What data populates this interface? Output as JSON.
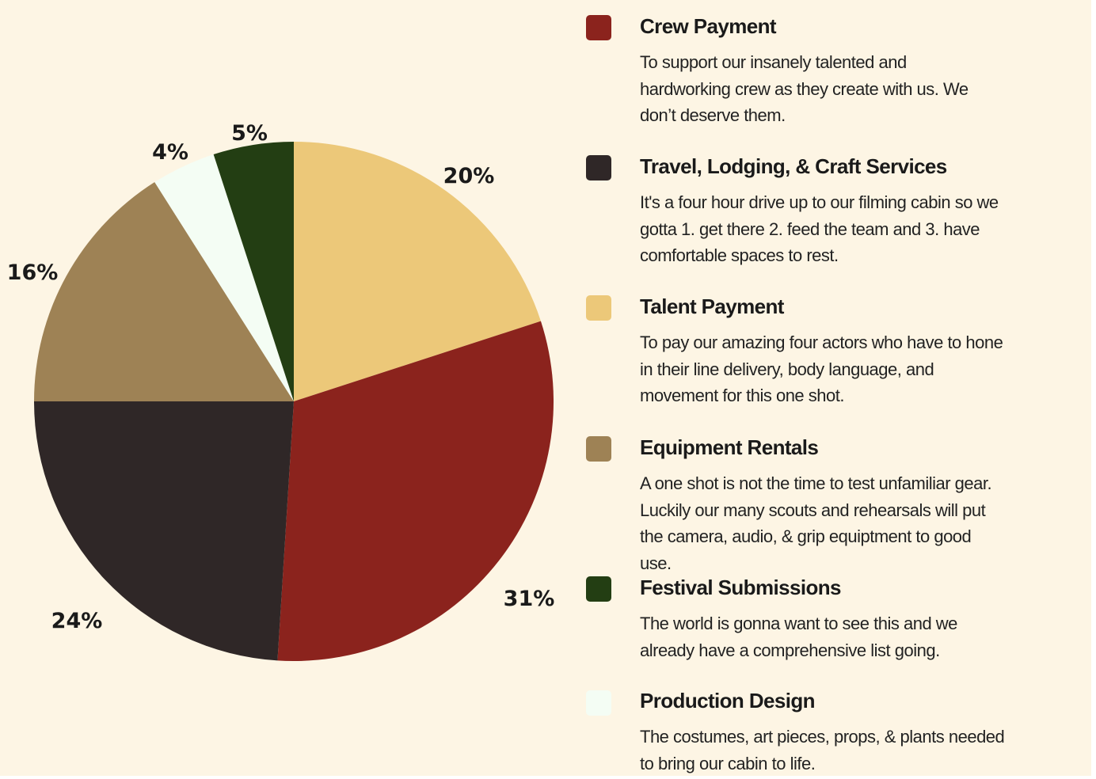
{
  "chart_data": {
    "type": "pie",
    "start_angle_deg": 0,
    "direction": "clockwise",
    "slices": [
      {
        "label": "Talent Payment",
        "value": 20,
        "value_label": "20%",
        "color": "#ecc879"
      },
      {
        "label": "Crew Payment",
        "value": 31,
        "value_label": "31%",
        "color": "#8b231d"
      },
      {
        "label": "Travel, Lodging, & Craft Services",
        "value": 24,
        "value_label": "24%",
        "color": "#2f2727"
      },
      {
        "label": "Equipment Rentals",
        "value": 16,
        "value_label": "16%",
        "color": "#9e8255"
      },
      {
        "label": "Production Design",
        "value": 4,
        "value_label": "4%",
        "color": "#f4fdf4"
      },
      {
        "label": "Festival Submissions",
        "value": 5,
        "value_label": "5%",
        "color": "#233e13"
      }
    ]
  },
  "legend": {
    "items": [
      {
        "title": "Crew Payment",
        "color": "#8b231d",
        "description": "To support our insanely talented and\nhardworking crew as they create with us. We\ndon’t deserve them."
      },
      {
        "title": "Travel, Lodging, & Craft Services",
        "color": "#2f2727",
        "description": "It's a four hour drive up to our filming cabin so we\ngotta 1. get there 2. feed the team and 3. have\ncomfortable spaces to rest."
      },
      {
        "title": "Talent Payment",
        "color": "#ecc879",
        "description": "To pay our amazing four actors who have to hone\nin their line delivery, body language, and\nmovement for this one shot."
      },
      {
        "title": "Equipment Rentals",
        "color": "#9e8255",
        "description": "A one shot is not the time to test unfamiliar gear.\nLuckily our many scouts and rehearsals will put\nthe  camera, audio, & grip equiptment  to good\nuse."
      },
      {
        "title": "Festival Submissions",
        "color": "#233e13",
        "description": "The world is gonna want to see this and we\nalready have a comprehensive list going."
      },
      {
        "title": "Production Design",
        "color": "#f4fdf4",
        "description": "The costumes, art pieces, props, & plants needed\nto bring our cabin to life."
      }
    ]
  }
}
